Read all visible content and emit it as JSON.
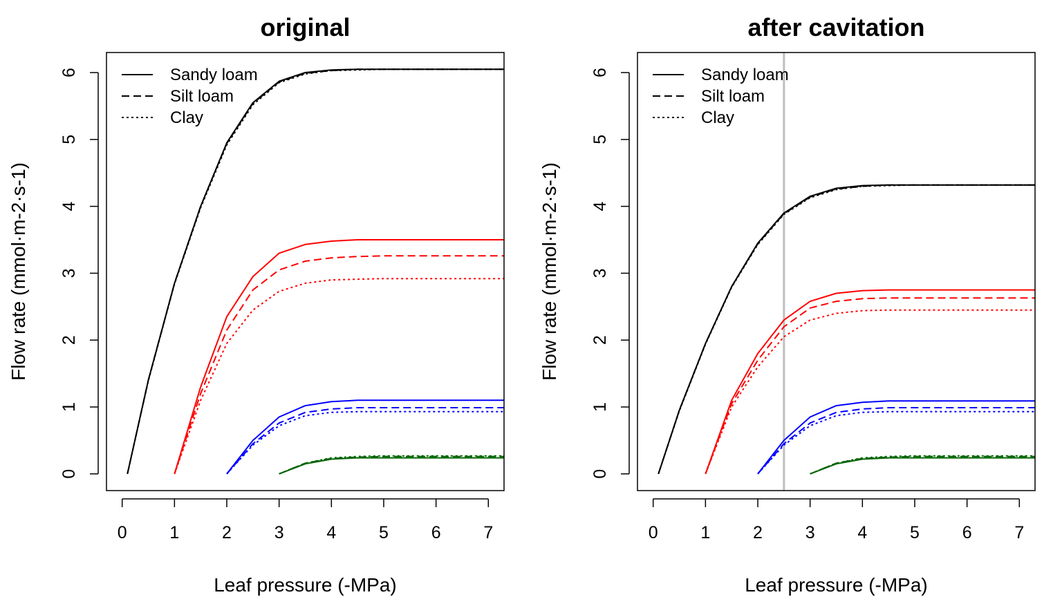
{
  "chart_data": [
    {
      "type": "line",
      "title": "original",
      "xlabel": "Leaf pressure (-MPa)",
      "ylabel": "Flow rate (mmol·m-2·s-1)",
      "xlim": [
        -0.3,
        7.3
      ],
      "ylim": [
        -0.25,
        6.3
      ],
      "xticks": [
        0,
        1,
        2,
        3,
        4,
        5,
        6,
        7
      ],
      "yticks": [
        0,
        1,
        2,
        3,
        4,
        5,
        6
      ],
      "grid": false,
      "legend": {
        "position": "top-left",
        "entries": [
          {
            "label": "Sandy loam",
            "linestyle": "solid"
          },
          {
            "label": "Silt loam",
            "linestyle": "dashed"
          },
          {
            "label": "Clay",
            "linestyle": "dotted"
          }
        ]
      },
      "vline": null,
      "groups": [
        {
          "color": "#000000",
          "start": 0.1,
          "series": [
            {
              "linestyle": "solid",
              "x": [
                0.1,
                0.5,
                1,
                1.5,
                2,
                2.5,
                3,
                3.5,
                4,
                4.5,
                5,
                6,
                7.3
              ],
              "y": [
                0,
                1.4,
                2.85,
                4.0,
                4.95,
                5.55,
                5.87,
                6.0,
                6.04,
                6.05,
                6.05,
                6.05,
                6.05
              ]
            },
            {
              "linestyle": "dashed",
              "x": [
                0.1,
                0.5,
                1,
                1.5,
                2,
                2.5,
                3,
                3.5,
                4,
                4.5,
                5,
                6,
                7.3
              ],
              "y": [
                0,
                1.4,
                2.85,
                4.0,
                4.94,
                5.54,
                5.86,
                5.99,
                6.03,
                6.05,
                6.05,
                6.05,
                6.05
              ]
            },
            {
              "linestyle": "dotted",
              "x": [
                0.1,
                0.5,
                1,
                1.5,
                2,
                2.5,
                3,
                3.5,
                4,
                4.5,
                5,
                6,
                7.3
              ],
              "y": [
                0,
                1.39,
                2.84,
                3.98,
                4.92,
                5.52,
                5.85,
                5.98,
                6.03,
                6.04,
                6.05,
                6.05,
                6.05
              ]
            }
          ]
        },
        {
          "color": "#ff0000",
          "start": 1.0,
          "series": [
            {
              "linestyle": "solid",
              "x": [
                1,
                1.5,
                2,
                2.5,
                3,
                3.5,
                4,
                4.5,
                5,
                6,
                7.3
              ],
              "y": [
                0,
                1.3,
                2.35,
                2.95,
                3.3,
                3.43,
                3.48,
                3.5,
                3.5,
                3.5,
                3.5
              ]
            },
            {
              "linestyle": "dashed",
              "x": [
                1,
                1.5,
                2,
                2.5,
                3,
                3.5,
                4,
                4.5,
                5,
                6,
                7.3
              ],
              "y": [
                0,
                1.2,
                2.15,
                2.75,
                3.05,
                3.18,
                3.23,
                3.25,
                3.26,
                3.26,
                3.26
              ]
            },
            {
              "linestyle": "dotted",
              "x": [
                1,
                1.5,
                2,
                2.5,
                3,
                3.5,
                4,
                4.5,
                5,
                6,
                7.3
              ],
              "y": [
                0,
                1.1,
                1.95,
                2.45,
                2.73,
                2.85,
                2.9,
                2.91,
                2.92,
                2.92,
                2.92
              ]
            }
          ]
        },
        {
          "color": "#0000ff",
          "start": 2.0,
          "series": [
            {
              "linestyle": "solid",
              "x": [
                2,
                2.5,
                3,
                3.5,
                4,
                4.5,
                5,
                6,
                7.3
              ],
              "y": [
                0,
                0.5,
                0.85,
                1.02,
                1.08,
                1.1,
                1.1,
                1.1,
                1.1
              ]
            },
            {
              "linestyle": "dashed",
              "x": [
                2,
                2.5,
                3,
                3.5,
                4,
                4.5,
                5,
                6,
                7.3
              ],
              "y": [
                0,
                0.45,
                0.76,
                0.92,
                0.97,
                0.99,
                0.99,
                0.99,
                0.99
              ]
            },
            {
              "linestyle": "dotted",
              "x": [
                2,
                2.5,
                3,
                3.5,
                4,
                4.5,
                5,
                6,
                7.3
              ],
              "y": [
                0,
                0.43,
                0.72,
                0.87,
                0.92,
                0.93,
                0.93,
                0.93,
                0.93
              ]
            }
          ]
        },
        {
          "color": "#006400",
          "start": 3.0,
          "series": [
            {
              "linestyle": "solid",
              "x": [
                3,
                3.5,
                4,
                4.5,
                5,
                6,
                7.3
              ],
              "y": [
                0,
                0.15,
                0.22,
                0.24,
                0.24,
                0.24,
                0.24
              ]
            },
            {
              "linestyle": "dashed",
              "x": [
                3,
                3.5,
                4,
                4.5,
                5,
                6,
                7.3
              ],
              "y": [
                0,
                0.16,
                0.23,
                0.25,
                0.26,
                0.26,
                0.26
              ]
            },
            {
              "linestyle": "dotted",
              "x": [
                3,
                3.5,
                4,
                4.5,
                5,
                6,
                7.3
              ],
              "y": [
                0,
                0.16,
                0.24,
                0.26,
                0.27,
                0.27,
                0.27
              ]
            }
          ]
        }
      ]
    },
    {
      "type": "line",
      "title": "after cavitation",
      "xlabel": "Leaf pressure (-MPa)",
      "ylabel": "Flow rate (mmol·m-2·s-1)",
      "xlim": [
        -0.3,
        7.3
      ],
      "ylim": [
        -0.25,
        6.3
      ],
      "xticks": [
        0,
        1,
        2,
        3,
        4,
        5,
        6,
        7
      ],
      "yticks": [
        0,
        1,
        2,
        3,
        4,
        5,
        6
      ],
      "grid": false,
      "legend": {
        "position": "top-left",
        "entries": [
          {
            "label": "Sandy loam",
            "linestyle": "solid"
          },
          {
            "label": "Silt loam",
            "linestyle": "dashed"
          },
          {
            "label": "Clay",
            "linestyle": "dotted"
          }
        ]
      },
      "vline": {
        "x": 2.5,
        "color": "#bebebe"
      },
      "groups": [
        {
          "color": "#000000",
          "start": 0.1,
          "series": [
            {
              "linestyle": "solid",
              "x": [
                0.1,
                0.5,
                1,
                1.5,
                2,
                2.5,
                3,
                3.5,
                4,
                4.5,
                5,
                6,
                7.3
              ],
              "y": [
                0,
                0.95,
                1.95,
                2.8,
                3.45,
                3.9,
                4.15,
                4.27,
                4.31,
                4.32,
                4.32,
                4.32,
                4.32
              ]
            },
            {
              "linestyle": "dashed",
              "x": [
                0.1,
                0.5,
                1,
                1.5,
                2,
                2.5,
                3,
                3.5,
                4,
                4.5,
                5,
                6,
                7.3
              ],
              "y": [
                0,
                0.95,
                1.95,
                2.8,
                3.44,
                3.89,
                4.14,
                4.26,
                4.3,
                4.32,
                4.32,
                4.32,
                4.32
              ]
            },
            {
              "linestyle": "dotted",
              "x": [
                0.1,
                0.5,
                1,
                1.5,
                2,
                2.5,
                3,
                3.5,
                4,
                4.5,
                5,
                6,
                7.3
              ],
              "y": [
                0,
                0.94,
                1.94,
                2.79,
                3.43,
                3.88,
                4.13,
                4.25,
                4.3,
                4.31,
                4.32,
                4.32,
                4.32
              ]
            }
          ]
        },
        {
          "color": "#ff0000",
          "start": 1.0,
          "series": [
            {
              "linestyle": "solid",
              "x": [
                1,
                1.5,
                2,
                2.5,
                3,
                3.5,
                4,
                4.5,
                5,
                6,
                7.3
              ],
              "y": [
                0,
                1.1,
                1.8,
                2.3,
                2.58,
                2.7,
                2.74,
                2.75,
                2.75,
                2.75,
                2.75
              ]
            },
            {
              "linestyle": "dashed",
              "x": [
                1,
                1.5,
                2,
                2.5,
                3,
                3.5,
                4,
                4.5,
                5,
                6,
                7.3
              ],
              "y": [
                0,
                1.05,
                1.7,
                2.2,
                2.48,
                2.58,
                2.62,
                2.63,
                2.63,
                2.63,
                2.63
              ]
            },
            {
              "linestyle": "dotted",
              "x": [
                1,
                1.5,
                2,
                2.5,
                3,
                3.5,
                4,
                4.5,
                5,
                6,
                7.3
              ],
              "y": [
                0,
                1.0,
                1.6,
                2.05,
                2.3,
                2.4,
                2.44,
                2.45,
                2.45,
                2.45,
                2.45
              ]
            }
          ]
        },
        {
          "color": "#0000ff",
          "start": 2.0,
          "series": [
            {
              "linestyle": "solid",
              "x": [
                2,
                2.5,
                3,
                3.5,
                4,
                4.5,
                5,
                6,
                7.3
              ],
              "y": [
                0,
                0.5,
                0.85,
                1.02,
                1.07,
                1.09,
                1.09,
                1.09,
                1.09
              ]
            },
            {
              "linestyle": "dashed",
              "x": [
                2,
                2.5,
                3,
                3.5,
                4,
                4.5,
                5,
                6,
                7.3
              ],
              "y": [
                0,
                0.45,
                0.76,
                0.92,
                0.97,
                0.99,
                0.99,
                0.99,
                0.99
              ]
            },
            {
              "linestyle": "dotted",
              "x": [
                2,
                2.5,
                3,
                3.5,
                4,
                4.5,
                5,
                6,
                7.3
              ],
              "y": [
                0,
                0.43,
                0.72,
                0.87,
                0.92,
                0.93,
                0.93,
                0.93,
                0.93
              ]
            }
          ]
        },
        {
          "color": "#006400",
          "start": 3.0,
          "series": [
            {
              "linestyle": "solid",
              "x": [
                3,
                3.5,
                4,
                4.5,
                5,
                6,
                7.3
              ],
              "y": [
                0,
                0.15,
                0.22,
                0.24,
                0.24,
                0.24,
                0.24
              ]
            },
            {
              "linestyle": "dashed",
              "x": [
                3,
                3.5,
                4,
                4.5,
                5,
                6,
                7.3
              ],
              "y": [
                0,
                0.16,
                0.23,
                0.25,
                0.26,
                0.26,
                0.26
              ]
            },
            {
              "linestyle": "dotted",
              "x": [
                3,
                3.5,
                4,
                4.5,
                5,
                6,
                7.3
              ],
              "y": [
                0,
                0.16,
                0.24,
                0.26,
                0.27,
                0.27,
                0.27
              ]
            }
          ]
        }
      ]
    }
  ]
}
